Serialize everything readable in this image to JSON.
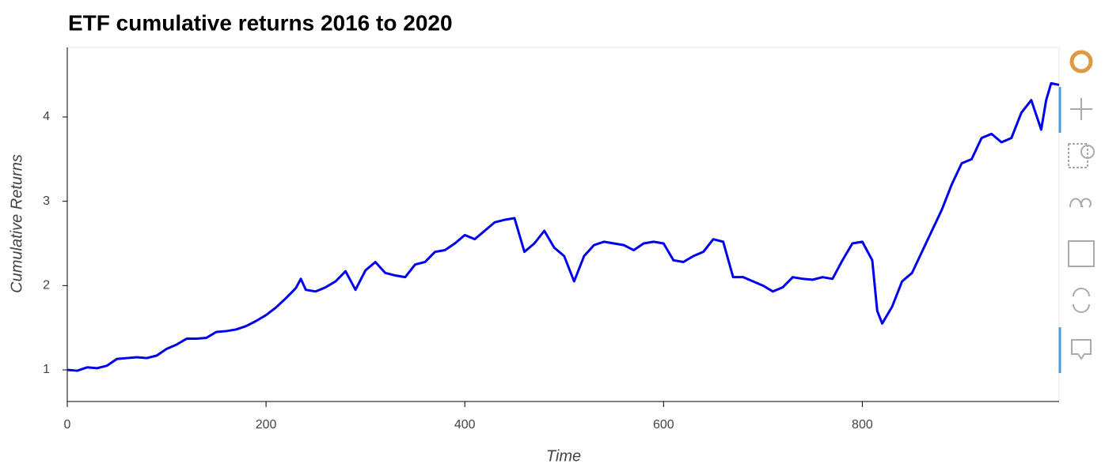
{
  "chart_data": {
    "type": "line",
    "title": "ETF cumulative returns 2016 to 2020",
    "x_label": "Time",
    "y_label": "Cumulative Returns",
    "x": [
      0,
      10,
      20,
      30,
      40,
      50,
      60,
      70,
      80,
      90,
      100,
      110,
      120,
      130,
      140,
      150,
      160,
      170,
      180,
      190,
      200,
      210,
      220,
      230,
      235,
      240,
      250,
      260,
      270,
      280,
      290,
      300,
      310,
      320,
      330,
      340,
      350,
      360,
      370,
      380,
      390,
      400,
      410,
      420,
      430,
      440,
      450,
      460,
      470,
      480,
      490,
      500,
      510,
      520,
      530,
      540,
      550,
      560,
      570,
      580,
      590,
      600,
      610,
      620,
      630,
      640,
      650,
      660,
      670,
      680,
      690,
      700,
      710,
      720,
      730,
      740,
      750,
      760,
      770,
      780,
      790,
      800,
      810,
      815,
      820,
      830,
      840,
      850,
      860,
      870,
      880,
      890,
      900,
      910,
      920,
      930,
      940,
      950,
      960,
      970,
      980,
      985,
      990,
      998
    ],
    "series": [
      {
        "name": "Cumulative Returns",
        "color": "#0000ee",
        "values": [
          1.0,
          0.99,
          1.03,
          1.02,
          1.05,
          1.13,
          1.14,
          1.15,
          1.14,
          1.17,
          1.25,
          1.3,
          1.37,
          1.37,
          1.38,
          1.45,
          1.46,
          1.48,
          1.52,
          1.58,
          1.65,
          1.74,
          1.85,
          1.97,
          2.08,
          1.95,
          1.93,
          1.98,
          2.05,
          2.17,
          1.95,
          2.18,
          2.28,
          2.15,
          2.12,
          2.1,
          2.25,
          2.28,
          2.4,
          2.42,
          2.5,
          2.6,
          2.55,
          2.65,
          2.75,
          2.78,
          2.8,
          2.4,
          2.5,
          2.65,
          2.45,
          2.35,
          2.05,
          2.35,
          2.48,
          2.52,
          2.5,
          2.48,
          2.42,
          2.5,
          2.52,
          2.5,
          2.3,
          2.28,
          2.35,
          2.4,
          2.55,
          2.52,
          2.1,
          2.1,
          2.05,
          2.0,
          1.93,
          1.98,
          2.1,
          2.08,
          2.07,
          2.1,
          2.08,
          2.3,
          2.5,
          2.52,
          2.3,
          1.7,
          1.55,
          1.75,
          2.05,
          2.15,
          2.4,
          2.65,
          2.9,
          3.2,
          3.45,
          3.5,
          3.75,
          3.8,
          3.7,
          3.75,
          4.05,
          4.2,
          3.85,
          4.2,
          4.4,
          4.38
        ]
      }
    ],
    "xlim": [
      0,
      998
    ],
    "ylim": [
      0.625,
      4.825
    ],
    "xticks": [
      0,
      200,
      400,
      600,
      800
    ],
    "yticks": [
      1,
      2,
      3,
      4
    ]
  }
}
